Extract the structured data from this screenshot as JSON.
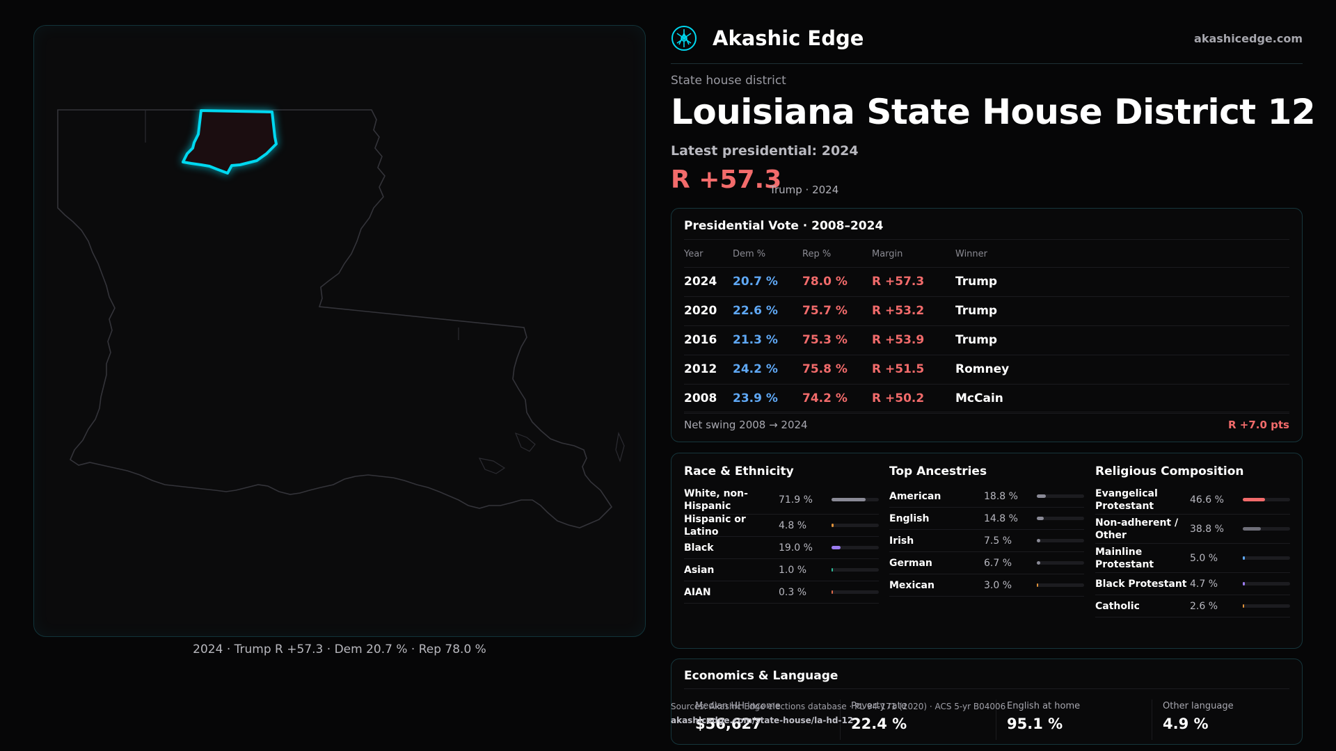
{
  "brand": {
    "name": "Akashic Edge",
    "url": "akashicedge.com",
    "logo_icon": "akashic-edge-logo-icon",
    "accent": "#00d8f0"
  },
  "district": {
    "type_label": "State house district",
    "title": "Louisiana State House District 12",
    "latest_label": "Latest presidential: 2024",
    "latest_margin": "R +57.3",
    "latest_sub": "Trump · 2024"
  },
  "map": {
    "caption": "2024 · Trump R +57.3 · Dem 20.7 % · Rep 78.0 %",
    "highlight_color": "#00d8f0",
    "outline_color": "#3a3a40"
  },
  "presidential": {
    "title": "Presidential Vote · 2008–2024",
    "headers": {
      "year": "Year",
      "dem": "Dem %",
      "rep": "Rep %",
      "margin": "Margin",
      "winner": "Winner"
    },
    "rows": [
      {
        "year": "2024",
        "dem": "20.7 %",
        "rep": "78.0 %",
        "margin": "R +57.3",
        "winner": "Trump"
      },
      {
        "year": "2020",
        "dem": "22.6 %",
        "rep": "75.7 %",
        "margin": "R +53.2",
        "winner": "Trump"
      },
      {
        "year": "2016",
        "dem": "21.3 %",
        "rep": "75.3 %",
        "margin": "R +53.9",
        "winner": "Trump"
      },
      {
        "year": "2012",
        "dem": "24.2 %",
        "rep": "75.8 %",
        "margin": "R +51.5",
        "winner": "Romney"
      },
      {
        "year": "2008",
        "dem": "23.9 %",
        "rep": "74.2 %",
        "margin": "R +50.2",
        "winner": "McCain"
      }
    ],
    "swing_label": "Net swing 2008 → 2024",
    "swing_value": "R +7.0 pts",
    "colors": {
      "dem": "#5fa8f5",
      "rep": "#f26b6b"
    }
  },
  "race": {
    "title": "Race & Ethnicity",
    "items": [
      {
        "label": "White, non-Hispanic",
        "value": "71.9 %",
        "fraction": 0.719,
        "color": "#8a8a96"
      },
      {
        "label": "Hispanic or Latino",
        "value": "4.8 %",
        "fraction": 0.048,
        "color": "#e0923a"
      },
      {
        "label": "Black",
        "value": "19.0 %",
        "fraction": 0.19,
        "color": "#9b7cf0"
      },
      {
        "label": "Asian",
        "value": "1.0 %",
        "fraction": 0.01,
        "color": "#2fbf9a"
      },
      {
        "label": "AIAN",
        "value": "0.3 %",
        "fraction": 0.003,
        "color": "#e06a4a"
      }
    ]
  },
  "ancestry": {
    "title": "Top Ancestries",
    "items": [
      {
        "label": "American",
        "value": "18.8 %",
        "fraction": 0.188,
        "color": "#8a8a96"
      },
      {
        "label": "English",
        "value": "14.8 %",
        "fraction": 0.148,
        "color": "#8a8a96"
      },
      {
        "label": "Irish",
        "value": "7.5 %",
        "fraction": 0.075,
        "color": "#8a8a96"
      },
      {
        "label": "German",
        "value": "6.7 %",
        "fraction": 0.067,
        "color": "#8a8a96"
      },
      {
        "label": "Mexican",
        "value": "3.0 %",
        "fraction": 0.03,
        "color": "#e0923a"
      }
    ]
  },
  "religion": {
    "title": "Religious Composition",
    "items": [
      {
        "label": "Evangelical Protestant",
        "value": "46.6 %",
        "fraction": 0.466,
        "color": "#f26b6b"
      },
      {
        "label": "Non-adherent / Other",
        "value": "38.8 %",
        "fraction": 0.388,
        "color": "#6e6e78"
      },
      {
        "label": "Mainline Protestant",
        "value": "5.0 %",
        "fraction": 0.05,
        "color": "#5fa8f5"
      },
      {
        "label": "Black Protestant",
        "value": "4.7 %",
        "fraction": 0.047,
        "color": "#9b7cf0"
      },
      {
        "label": "Catholic",
        "value": "2.6 %",
        "fraction": 0.026,
        "color": "#e0923a"
      }
    ]
  },
  "economics": {
    "title": "Economics & Language",
    "items": [
      {
        "label": "Median HH income",
        "value": "$56,627"
      },
      {
        "label": "Poverty rate",
        "value": "22.4 %"
      },
      {
        "label": "English at home",
        "value": "95.1 %"
      },
      {
        "label": "Other language",
        "value": "4.9 %"
      }
    ]
  },
  "sources": {
    "text": "Sources: Akashic Edge elections database · PL 94-171 (2020) · ACS 5-yr B04006",
    "url": "akashicedge.com/state-house/la-hd-12"
  }
}
